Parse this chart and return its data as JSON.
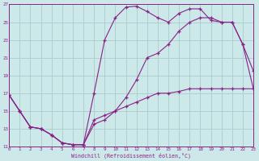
{
  "xlabel": "Windchill (Refroidissement éolien,°C)",
  "bg_color": "#cce8e8",
  "line_color": "#882288",
  "grid_color": "#aacccc",
  "line1_x": [
    0,
    1,
    2,
    3,
    4,
    5,
    6,
    7,
    8,
    9,
    10,
    11,
    12,
    13,
    14,
    15,
    16,
    17,
    18,
    19,
    20,
    21,
    22,
    23
  ],
  "line1_y": [
    16.8,
    15.0,
    13.2,
    13.0,
    12.3,
    11.4,
    11.2,
    11.2,
    17.0,
    23.0,
    25.5,
    26.7,
    26.8,
    26.2,
    25.5,
    25.0,
    26.0,
    26.5,
    26.5,
    25.2,
    25.0,
    25.0,
    22.5,
    19.5
  ],
  "line2_x": [
    0,
    1,
    2,
    3,
    4,
    5,
    6,
    7,
    8,
    9,
    10,
    11,
    12,
    13,
    14,
    15,
    16,
    17,
    18,
    19,
    20,
    21,
    22,
    23
  ],
  "line2_y": [
    16.8,
    15.0,
    13.2,
    13.0,
    12.3,
    11.4,
    11.2,
    11.2,
    14.0,
    14.5,
    15.0,
    15.5,
    16.0,
    16.5,
    17.0,
    17.0,
    17.2,
    17.5,
    17.5,
    17.5,
    17.5,
    17.5,
    17.5,
    17.5
  ],
  "line3_x": [
    0,
    1,
    2,
    3,
    4,
    5,
    6,
    7,
    8,
    9,
    10,
    11,
    12,
    13,
    14,
    15,
    16,
    17,
    18,
    19,
    20,
    21,
    22,
    23
  ],
  "line3_y": [
    16.8,
    15.0,
    13.2,
    13.0,
    12.3,
    11.4,
    11.2,
    11.2,
    13.5,
    14.0,
    15.0,
    16.5,
    18.5,
    21.0,
    21.5,
    22.5,
    24.0,
    25.0,
    25.5,
    25.5,
    25.0,
    25.0,
    22.5,
    17.5
  ],
  "ylim": [
    11,
    27
  ],
  "xlim": [
    0,
    23
  ],
  "yticks": [
    11,
    13,
    15,
    17,
    19,
    21,
    23,
    25,
    27
  ],
  "xticks": [
    0,
    1,
    2,
    3,
    4,
    5,
    6,
    7,
    8,
    9,
    10,
    11,
    12,
    13,
    14,
    15,
    16,
    17,
    18,
    19,
    20,
    21,
    22,
    23
  ]
}
